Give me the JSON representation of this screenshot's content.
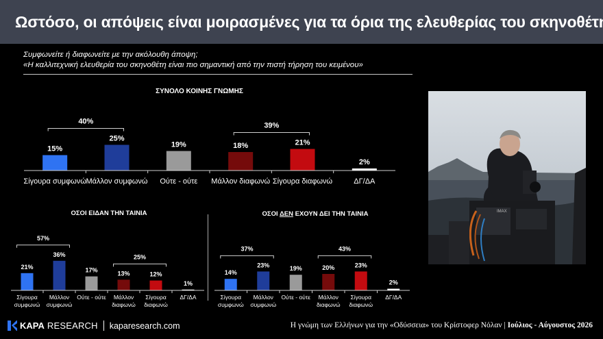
{
  "title": "Ωστόσο, οι απόψεις είναι μοιρασμένες για τα όρια της ελευθερίας του σκηνοθέτη",
  "question": {
    "line1": "Συμφωνείτε ή διαφωνείτε με την ακόλουθη άποψη;",
    "line2": "«Η καλλιτεχνική ελευθερία του σκηνοθέτη είναι πιο σημαντική από την πιστή τήρηση του κειμένου»"
  },
  "colors": {
    "light_blue": "#2f73f2",
    "dark_blue": "#1f3d9a",
    "gray": "#9a9a9a",
    "dark_red": "#750b0b",
    "red": "#c30b10",
    "white": "#ffffff"
  },
  "chart_data": [
    {
      "type": "bar",
      "title": "ΣΥΝΟΛΟ ΚΟΙΝΗΣ ΓΝΩΜΗΣ",
      "categories": [
        "Σίγουρα συμφωνώ",
        "Μάλλον συμφωνώ",
        "Ούτε - ούτε",
        "Μάλλον διαφωνώ",
        "Σίγουρα διαφωνώ",
        "ΔΓ/ΔΑ"
      ],
      "values": [
        15,
        25,
        19,
        18,
        21,
        2
      ],
      "value_labels": [
        "15%",
        "25%",
        "19%",
        "18%",
        "21%",
        "2%"
      ],
      "bar_colors": [
        "light_blue",
        "dark_blue",
        "gray",
        "dark_red",
        "red",
        "white"
      ],
      "groups": [
        {
          "label": "40%",
          "from": 0,
          "to": 1
        },
        {
          "label": "39%",
          "from": 3,
          "to": 4
        }
      ]
    },
    {
      "type": "bar",
      "title": "ΟΣΟΙ ΕΙΔΑΝ ΤΗΝ ΤΑΙΝΙΑ",
      "categories": [
        [
          "Σίγουρα",
          "συμφωνώ"
        ],
        [
          "Μάλλον",
          "συμφωνώ"
        ],
        [
          "Ούτε - ούτε"
        ],
        [
          "Μάλλον",
          "διαφωνώ"
        ],
        [
          "Σίγουρα",
          "διαφωνώ"
        ],
        [
          "ΔΓ/ΔΑ"
        ]
      ],
      "values": [
        21,
        36,
        17,
        13,
        12,
        1
      ],
      "value_labels": [
        "21%",
        "36%",
        "17%",
        "13%",
        "12%",
        "1%"
      ],
      "bar_colors": [
        "light_blue",
        "dark_blue",
        "gray",
        "dark_red",
        "red",
        "white"
      ],
      "groups": [
        {
          "label": "57%",
          "from": 0,
          "to": 1
        },
        {
          "label": "25%",
          "from": 3,
          "to": 4
        }
      ]
    },
    {
      "type": "bar",
      "title_parts": [
        "ΟΣΟΙ ",
        "ΔΕΝ",
        " ΕΧΟΥΝ ΔΕΙ ΤΗΝ ΤΑΙΝΙΑ"
      ],
      "categories": [
        [
          "Σίγουρα",
          "συμφωνώ"
        ],
        [
          "Μάλλον",
          "συμφωνώ"
        ],
        [
          "Ούτε - ούτε"
        ],
        [
          "Μάλλον",
          "διαφωνώ"
        ],
        [
          "Σίγουρα",
          "διαφωνώ"
        ],
        [
          "ΔΓ/ΔΑ"
        ]
      ],
      "values": [
        14,
        23,
        19,
        20,
        23,
        2
      ],
      "value_labels": [
        "14%",
        "23%",
        "19%",
        "20%",
        "23%",
        "2%"
      ],
      "bar_colors": [
        "light_blue",
        "dark_blue",
        "gray",
        "dark_red",
        "red",
        "white"
      ],
      "groups": [
        {
          "label": "37%",
          "from": 0,
          "to": 1
        },
        {
          "label": "43%",
          "from": 3,
          "to": 4
        }
      ]
    }
  ],
  "footer": {
    "logo_k": "KAPA",
    "logo_r": "RESEARCH",
    "url": "kaparesearch.com",
    "survey": "Η γνώμη των Ελλήνων για την «Οδύσσεια» του Κρίστοφερ Νόλαν",
    "date": "Ιούλιος - Αύγουστος 2026"
  },
  "photo": {
    "camera_label": "IMAX"
  }
}
